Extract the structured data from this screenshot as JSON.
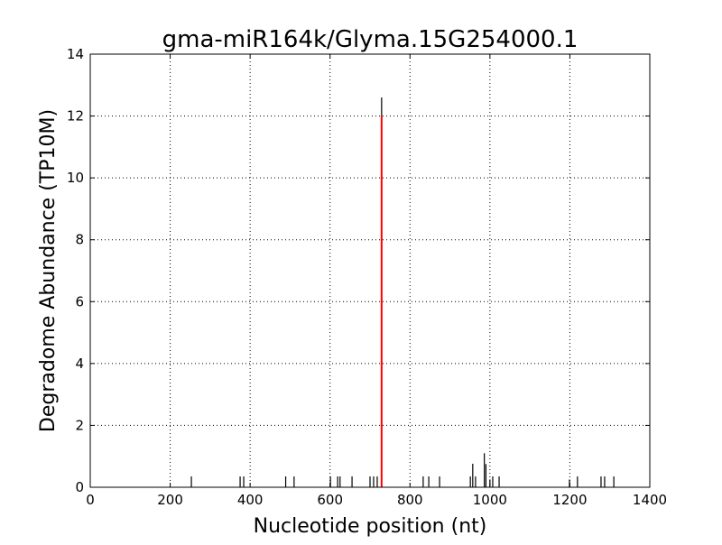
{
  "chart_data": {
    "type": "bar",
    "title": "gma-miR164k/Glyma.15G254000.1",
    "xlabel": "Nucleotide position (nt)",
    "ylabel": "Degradome Abundance (TP10M)",
    "xlim": [
      0,
      1400
    ],
    "ylim": [
      0,
      14
    ],
    "xticks": [
      0,
      200,
      400,
      600,
      800,
      1000,
      1200,
      1400
    ],
    "yticks": [
      0,
      2,
      4,
      6,
      8,
      10,
      12,
      14
    ],
    "grid": true,
    "series": [
      {
        "color": "#000000",
        "x": [
          253,
          375,
          384,
          489,
          510,
          601,
          619,
          625,
          655,
          700,
          709,
          718,
          729,
          833,
          847,
          874,
          951,
          957,
          964,
          986,
          990,
          1000,
          1007,
          1023,
          1199,
          1219,
          1278,
          1287,
          1310
        ],
        "values": [
          0.35,
          0.35,
          0.35,
          0.35,
          0.35,
          0.35,
          0.35,
          0.35,
          0.35,
          0.35,
          0.35,
          0.35,
          12.6,
          0.35,
          0.35,
          0.35,
          0.35,
          0.76,
          0.35,
          1.1,
          0.75,
          0.25,
          0.35,
          0.35,
          0.25,
          0.35,
          0.35,
          0.35,
          0.35
        ]
      },
      {
        "color": "#ff0000",
        "x": [
          729
        ],
        "values": [
          12.0
        ]
      }
    ]
  }
}
